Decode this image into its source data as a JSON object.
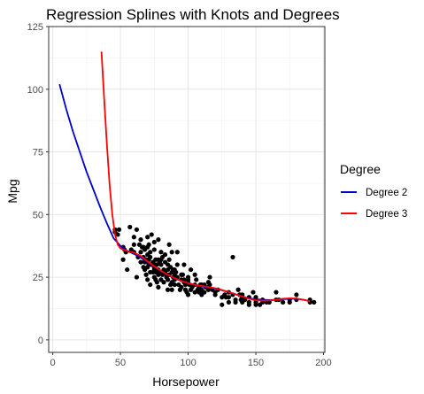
{
  "chart_data": {
    "type": "scatter",
    "title": "Regression Splines with Knots and Degrees",
    "xlabel": "Horsepower",
    "ylabel": "Mpg",
    "xlim": [
      -3,
      201
    ],
    "ylim": [
      -5,
      125
    ],
    "x_ticks": [
      0,
      50,
      100,
      150,
      200
    ],
    "y_ticks": [
      0,
      25,
      50,
      75,
      100,
      125
    ],
    "grid": true,
    "legend": {
      "title": "Degree",
      "placement": "right"
    },
    "points_color": "#000000",
    "points": [
      [
        46,
        44
      ],
      [
        46,
        43
      ],
      [
        48,
        42
      ],
      [
        49,
        44
      ],
      [
        52,
        37
      ],
      [
        52,
        32
      ],
      [
        53,
        36
      ],
      [
        54,
        35
      ],
      [
        58,
        36
      ],
      [
        60,
        35
      ],
      [
        62,
        25
      ],
      [
        63,
        33
      ],
      [
        64,
        38
      ],
      [
        65,
        40
      ],
      [
        65,
        35
      ],
      [
        65,
        31
      ],
      [
        66,
        37
      ],
      [
        67,
        33
      ],
      [
        67,
        37
      ],
      [
        67,
        29
      ],
      [
        68,
        32
      ],
      [
        68,
        36
      ],
      [
        68,
        31
      ],
      [
        68,
        28
      ],
      [
        69,
        32
      ],
      [
        69,
        26
      ],
      [
        70,
        31
      ],
      [
        70,
        34
      ],
      [
        70,
        37
      ],
      [
        70,
        29
      ],
      [
        70,
        24
      ],
      [
        71,
        32
      ],
      [
        71,
        30
      ],
      [
        72,
        33
      ],
      [
        72,
        27
      ],
      [
        72,
        35
      ],
      [
        72,
        22
      ],
      [
        73,
        30
      ],
      [
        74,
        27
      ],
      [
        74,
        31
      ],
      [
        75,
        28
      ],
      [
        75,
        29
      ],
      [
        75,
        25
      ],
      [
        75,
        36
      ],
      [
        75,
        39
      ],
      [
        76,
        32
      ],
      [
        76,
        30
      ],
      [
        76,
        27
      ],
      [
        76,
        24
      ],
      [
        77,
        23
      ],
      [
        77,
        30
      ],
      [
        78,
        28
      ],
      [
        78,
        26
      ],
      [
        78,
        32
      ],
      [
        78,
        21
      ],
      [
        79,
        31
      ],
      [
        79,
        27
      ],
      [
        80,
        24
      ],
      [
        80,
        30
      ],
      [
        80,
        32
      ],
      [
        81,
        26
      ],
      [
        81,
        33
      ],
      [
        82,
        28
      ],
      [
        82,
        23
      ],
      [
        83,
        27
      ],
      [
        83,
        31
      ],
      [
        84,
        26
      ],
      [
        84,
        25
      ],
      [
        85,
        30
      ],
      [
        85,
        28
      ],
      [
        85,
        20
      ],
      [
        85,
        24
      ],
      [
        86,
        26
      ],
      [
        86,
        32
      ],
      [
        86,
        38
      ],
      [
        87,
        22
      ],
      [
        87,
        29
      ],
      [
        88,
        23
      ],
      [
        88,
        27
      ],
      [
        88,
        20
      ],
      [
        88,
        35
      ],
      [
        89,
        25
      ],
      [
        89,
        28
      ],
      [
        90,
        24
      ],
      [
        90,
        22
      ],
      [
        90,
        28
      ],
      [
        90,
        26
      ],
      [
        91,
        27
      ],
      [
        92,
        25
      ],
      [
        92,
        30
      ],
      [
        93,
        22
      ],
      [
        94,
        20
      ],
      [
        95,
        24
      ],
      [
        95,
        26
      ],
      [
        95,
        21
      ],
      [
        96,
        26
      ],
      [
        97,
        24
      ],
      [
        97,
        30
      ],
      [
        98,
        22
      ],
      [
        98,
        20
      ],
      [
        99,
        19
      ],
      [
        100,
        23
      ],
      [
        100,
        18
      ],
      [
        100,
        24
      ],
      [
        100,
        25
      ],
      [
        101,
        22
      ],
      [
        102,
        20
      ],
      [
        102,
        28
      ],
      [
        103,
        21
      ],
      [
        105,
        22
      ],
      [
        105,
        26
      ],
      [
        105,
        19
      ],
      [
        106,
        24
      ],
      [
        107,
        20
      ],
      [
        108,
        21
      ],
      [
        108,
        19
      ],
      [
        109,
        22
      ],
      [
        110,
        22
      ],
      [
        110,
        19
      ],
      [
        110,
        18
      ],
      [
        110,
        20
      ],
      [
        112,
        22
      ],
      [
        112,
        19
      ],
      [
        113,
        21
      ],
      [
        115,
        23
      ],
      [
        115,
        21
      ],
      [
        115,
        20
      ],
      [
        116,
        22
      ],
      [
        116,
        25
      ],
      [
        118,
        20
      ],
      [
        120,
        18
      ],
      [
        120,
        19
      ],
      [
        122,
        20
      ],
      [
        125,
        17
      ],
      [
        125,
        14
      ],
      [
        127,
        18
      ],
      [
        128,
        17
      ],
      [
        130,
        17
      ],
      [
        130,
        15
      ],
      [
        130,
        19
      ],
      [
        133,
        18
      ],
      [
        133,
        33
      ],
      [
        135,
        15
      ],
      [
        135,
        16
      ],
      [
        137,
        20
      ],
      [
        138,
        18
      ],
      [
        139,
        16
      ],
      [
        140,
        15
      ],
      [
        140,
        18
      ],
      [
        140,
        17
      ],
      [
        142,
        16
      ],
      [
        145,
        14
      ],
      [
        145,
        15
      ],
      [
        145,
        17
      ],
      [
        148,
        19
      ],
      [
        150,
        15
      ],
      [
        150,
        17
      ],
      [
        150,
        14
      ],
      [
        150,
        16
      ],
      [
        153,
        14
      ],
      [
        155,
        16
      ],
      [
        155,
        15
      ],
      [
        158,
        15
      ],
      [
        160,
        15
      ],
      [
        165,
        16
      ],
      [
        165,
        19
      ],
      [
        167,
        16
      ],
      [
        170,
        15
      ],
      [
        175,
        16
      ],
      [
        175,
        15
      ],
      [
        180,
        16
      ],
      [
        180,
        18
      ],
      [
        190,
        15
      ],
      [
        190,
        16
      ],
      [
        193,
        15
      ],
      [
        55,
        28
      ],
      [
        57,
        45
      ],
      [
        60,
        41
      ],
      [
        62,
        44
      ],
      [
        73,
        42
      ],
      [
        78,
        40
      ],
      [
        60,
        38
      ],
      [
        71,
        38
      ],
      [
        80,
        35
      ],
      [
        92,
        35
      ],
      [
        97,
        23
      ],
      [
        83,
        34
      ],
      [
        70,
        41
      ]
    ],
    "series": [
      {
        "name": "Degree 2",
        "color": "#0000CC",
        "x": [
          5,
          10,
          15,
          20,
          25,
          30,
          35,
          40,
          45,
          50,
          55,
          60,
          65,
          70,
          75,
          80,
          85,
          90,
          95,
          100,
          105,
          110,
          115,
          120,
          125,
          130,
          135,
          140,
          145,
          150,
          155,
          160,
          165,
          170,
          175,
          180,
          185,
          190
        ],
        "y": [
          102,
          92,
          83,
          75,
          67,
          60,
          53,
          46.5,
          40.5,
          37.5,
          35.5,
          34.3,
          32.8,
          31,
          29.2,
          27.4,
          25.9,
          24.5,
          23.5,
          22.7,
          22,
          21.3,
          20.9,
          20.5,
          19.8,
          19,
          18.2,
          17.3,
          16.6,
          16.2,
          16,
          15.9,
          16,
          16.2,
          16.4,
          16.4,
          16,
          15.4
        ]
      },
      {
        "name": "Degree 3",
        "color": "#FF0000",
        "x": [
          36,
          38,
          40,
          42,
          44,
          46,
          48,
          50,
          55,
          60,
          65,
          70,
          75,
          80,
          85,
          90,
          95,
          100,
          105,
          110,
          115,
          120,
          125,
          130,
          135,
          140,
          145,
          150,
          155,
          160,
          165,
          170,
          175,
          180,
          185,
          190
        ],
        "y": [
          115,
          96,
          78,
          62,
          50,
          42,
          38,
          36.5,
          35.4,
          34.8,
          33.5,
          31.3,
          29.3,
          27.5,
          26,
          24.6,
          23.5,
          22.6,
          22,
          21.5,
          21.1,
          20.6,
          19.9,
          19.1,
          18.2,
          17.3,
          16.4,
          15.8,
          15.6,
          15.7,
          16,
          16.4,
          16.6,
          16.5,
          16,
          15.4
        ]
      }
    ]
  }
}
